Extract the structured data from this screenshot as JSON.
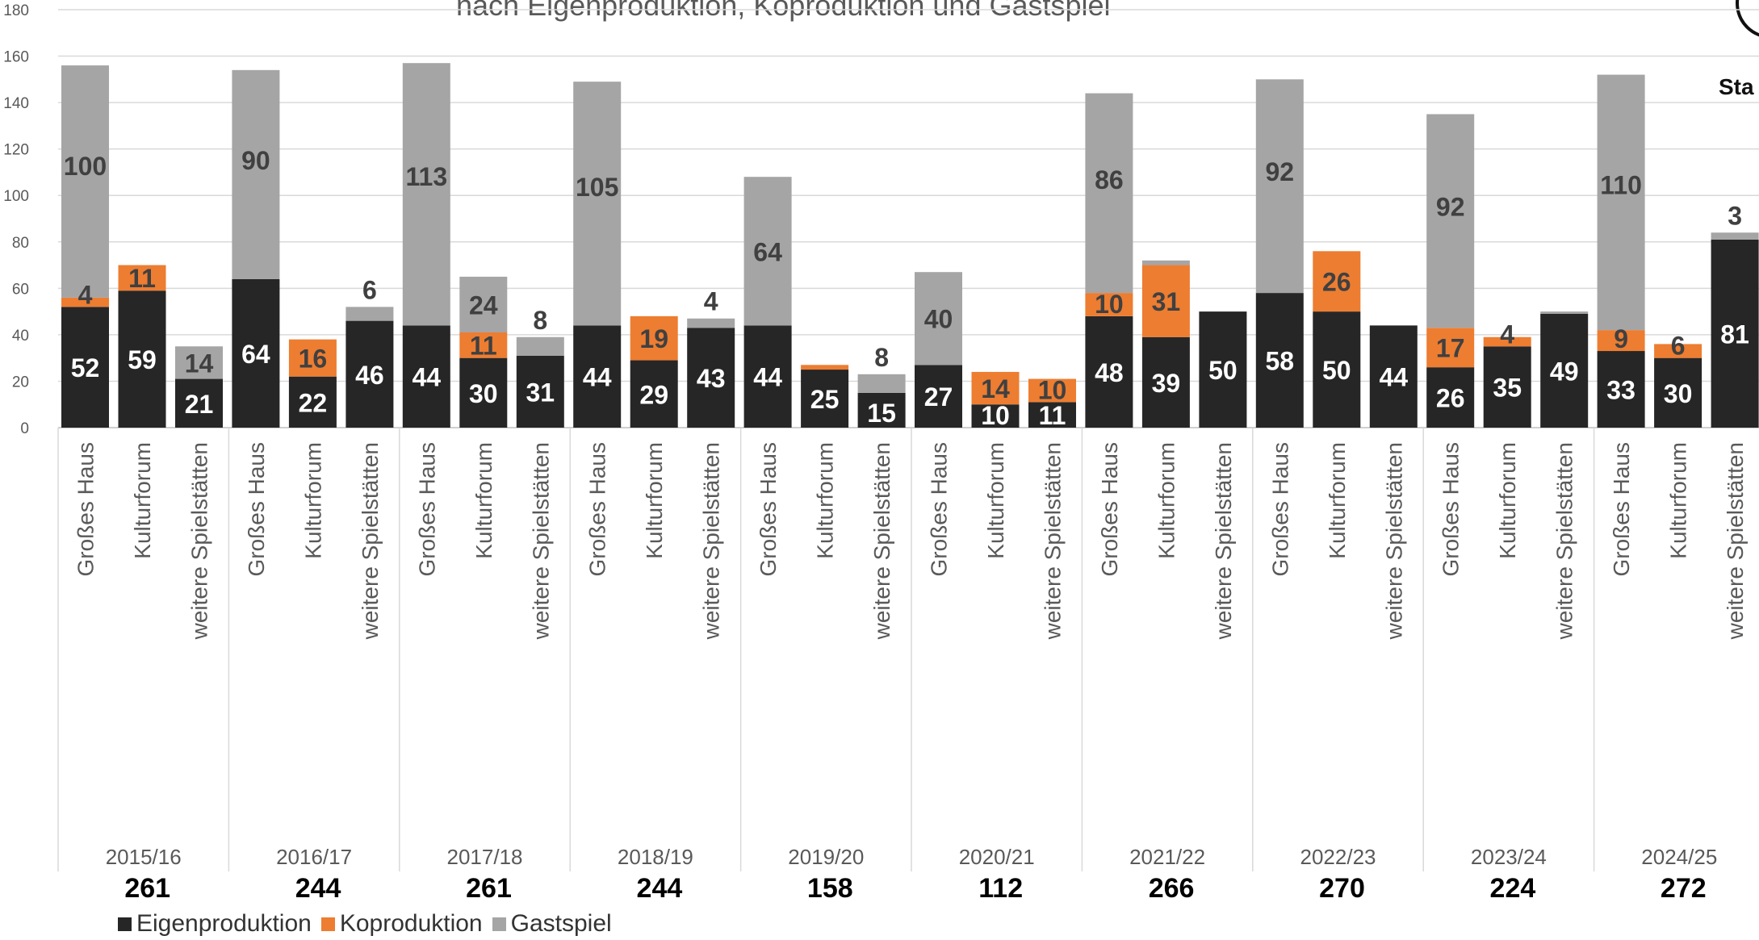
{
  "colors": {
    "eigen": "#262626",
    "ko": "#ED7D31",
    "gast": "#A5A5A5",
    "grid": "#D9D9D9",
    "axis_text": "#595959",
    "total_text": "#000000"
  },
  "title_fragment": "nach Eigenproduktion, Koproduktion und Gastspiel",
  "side_fragment": "Sta",
  "legend": {
    "eigen": "Eigenproduktion",
    "ko": "Koproduktion",
    "gast": "Gastspiel"
  },
  "chart_data": {
    "type": "bar",
    "stacked": true,
    "ylim": [
      0,
      180
    ],
    "yticks": [
      0,
      20,
      40,
      60,
      80,
      100,
      120,
      140,
      160,
      180
    ],
    "grid": true,
    "legend_position": "bottom-left",
    "venues": [
      "Großes Haus",
      "Kulturforum",
      "weitere Spielstätten"
    ],
    "series_names": [
      "Eigenproduktion",
      "Koproduktion",
      "Gastspiel"
    ],
    "seasons": [
      {
        "label": "2015/16",
        "total": "261",
        "bars": [
          {
            "venue": "Großes Haus",
            "eigen": 52,
            "ko": 4,
            "gast": 100
          },
          {
            "venue": "Kulturforum",
            "eigen": 59,
            "ko": 11,
            "gast": 0
          },
          {
            "venue": "weitere Spielstätten",
            "eigen": 21,
            "ko": 0,
            "gast": 14
          }
        ]
      },
      {
        "label": "2016/17",
        "total": "244",
        "bars": [
          {
            "venue": "Großes Haus",
            "eigen": 64,
            "ko": 0,
            "gast": 90
          },
          {
            "venue": "Kulturforum",
            "eigen": 22,
            "ko": 16,
            "gast": 0
          },
          {
            "venue": "weitere Spielstätten",
            "eigen": 46,
            "ko": 0,
            "gast": 6
          }
        ]
      },
      {
        "label": "2017/18",
        "total": "261",
        "bars": [
          {
            "venue": "Großes Haus",
            "eigen": 44,
            "ko": 0,
            "gast": 113
          },
          {
            "venue": "Kulturforum",
            "eigen": 30,
            "ko": 11,
            "gast": 24
          },
          {
            "venue": "weitere Spielstätten",
            "eigen": 31,
            "ko": 0,
            "gast": 8
          }
        ]
      },
      {
        "label": "2018/19",
        "total": "244",
        "bars": [
          {
            "venue": "Großes Haus",
            "eigen": 44,
            "ko": 0,
            "gast": 105
          },
          {
            "venue": "Kulturforum",
            "eigen": 29,
            "ko": 19,
            "gast": 0
          },
          {
            "venue": "weitere Spielstätten",
            "eigen": 43,
            "ko": 0,
            "gast": 4
          }
        ]
      },
      {
        "label": "2019/20",
        "total": "158",
        "bars": [
          {
            "venue": "Großes Haus",
            "eigen": 44,
            "ko": 0,
            "gast": 64
          },
          {
            "venue": "Kulturforum",
            "eigen": 25,
            "ko": 2,
            "gast": 0
          },
          {
            "venue": "weitere Spielstätten",
            "eigen": 15,
            "ko": 0,
            "gast": 8
          }
        ]
      },
      {
        "label": "2020/21",
        "total": "112",
        "bars": [
          {
            "venue": "Großes Haus",
            "eigen": 27,
            "ko": 0,
            "gast": 40
          },
          {
            "venue": "Kulturforum",
            "eigen": 10,
            "ko": 14,
            "gast": 0
          },
          {
            "venue": "weitere Spielstätten",
            "eigen": 11,
            "ko": 10,
            "gast": 0
          }
        ]
      },
      {
        "label": "2021/22",
        "total": "266",
        "bars": [
          {
            "venue": "Großes Haus",
            "eigen": 48,
            "ko": 10,
            "gast": 86
          },
          {
            "venue": "Kulturforum",
            "eigen": 39,
            "ko": 31,
            "gast": 2
          },
          {
            "venue": "weitere Spielstätten",
            "eigen": 50,
            "ko": 0,
            "gast": 0
          }
        ]
      },
      {
        "label": "2022/23",
        "total": "270",
        "bars": [
          {
            "venue": "Großes Haus",
            "eigen": 58,
            "ko": 0,
            "gast": 92
          },
          {
            "venue": "Kulturforum",
            "eigen": 50,
            "ko": 26,
            "gast": 0
          },
          {
            "venue": "weitere Spielstätten",
            "eigen": 44,
            "ko": 0,
            "gast": 0
          }
        ]
      },
      {
        "label": "2023/24",
        "total": "224",
        "bars": [
          {
            "venue": "Großes Haus",
            "eigen": 26,
            "ko": 17,
            "gast": 92
          },
          {
            "venue": "Kulturforum",
            "eigen": 35,
            "ko": 4,
            "gast": 0
          },
          {
            "venue": "weitere Spielstätten",
            "eigen": 49,
            "ko": 0,
            "gast": 1
          }
        ]
      },
      {
        "label": "2024/25",
        "total": "272",
        "bars": [
          {
            "venue": "Großes Haus",
            "eigen": 33,
            "ko": 9,
            "gast": 110
          },
          {
            "venue": "Kulturforum",
            "eigen": 30,
            "ko": 6,
            "gast": 0
          },
          {
            "venue": "weitere Spielstätten",
            "eigen": 81,
            "ko": 0,
            "gast": 3
          }
        ]
      }
    ],
    "data_labels": [
      {
        "season": 0,
        "bar": 0,
        "series": "eigen",
        "text": "52"
      },
      {
        "season": 0,
        "bar": 0,
        "series": "ko",
        "text": "4"
      },
      {
        "season": 0,
        "bar": 0,
        "series": "gast",
        "text": "100"
      },
      {
        "season": 0,
        "bar": 1,
        "series": "eigen",
        "text": "59"
      },
      {
        "season": 0,
        "bar": 1,
        "series": "ko",
        "text": "11"
      },
      {
        "season": 0,
        "bar": 2,
        "series": "eigen",
        "text": "21"
      },
      {
        "season": 0,
        "bar": 2,
        "series": "gast",
        "text": "14"
      },
      {
        "season": 1,
        "bar": 0,
        "series": "eigen",
        "text": "64"
      },
      {
        "season": 1,
        "bar": 0,
        "series": "gast",
        "text": "90"
      },
      {
        "season": 1,
        "bar": 1,
        "series": "eigen",
        "text": "22"
      },
      {
        "season": 1,
        "bar": 1,
        "series": "ko",
        "text": "16"
      },
      {
        "season": 1,
        "bar": 2,
        "series": "eigen",
        "text": "46"
      },
      {
        "season": 1,
        "bar": 2,
        "series": "gast",
        "text": "6"
      },
      {
        "season": 2,
        "bar": 0,
        "series": "eigen",
        "text": "44"
      },
      {
        "season": 2,
        "bar": 0,
        "series": "gast",
        "text": "113"
      },
      {
        "season": 2,
        "bar": 1,
        "series": "eigen",
        "text": "30"
      },
      {
        "season": 2,
        "bar": 1,
        "series": "ko",
        "text": "11"
      },
      {
        "season": 2,
        "bar": 1,
        "series": "gast",
        "text": "24"
      },
      {
        "season": 2,
        "bar": 2,
        "series": "eigen",
        "text": "31"
      },
      {
        "season": 2,
        "bar": 2,
        "series": "gast",
        "text": "8"
      },
      {
        "season": 3,
        "bar": 0,
        "series": "eigen",
        "text": "44"
      },
      {
        "season": 3,
        "bar": 0,
        "series": "gast",
        "text": "105"
      },
      {
        "season": 3,
        "bar": 1,
        "series": "eigen",
        "text": "29"
      },
      {
        "season": 3,
        "bar": 1,
        "series": "ko",
        "text": "19"
      },
      {
        "season": 3,
        "bar": 2,
        "series": "eigen",
        "text": "43"
      },
      {
        "season": 3,
        "bar": 2,
        "series": "gast",
        "text": "4"
      },
      {
        "season": 4,
        "bar": 0,
        "series": "eigen",
        "text": "44"
      },
      {
        "season": 4,
        "bar": 0,
        "series": "gast",
        "text": "64"
      },
      {
        "season": 4,
        "bar": 1,
        "series": "eigen",
        "text": "25"
      },
      {
        "season": 4,
        "bar": 2,
        "series": "eigen",
        "text": "15"
      },
      {
        "season": 4,
        "bar": 2,
        "series": "gast",
        "text": "8"
      },
      {
        "season": 5,
        "bar": 0,
        "series": "eigen",
        "text": "27"
      },
      {
        "season": 5,
        "bar": 0,
        "series": "gast",
        "text": "40"
      },
      {
        "season": 5,
        "bar": 1,
        "series": "eigen",
        "text": "10"
      },
      {
        "season": 5,
        "bar": 1,
        "series": "ko",
        "text": "14"
      },
      {
        "season": 5,
        "bar": 2,
        "series": "eigen",
        "text": "11"
      },
      {
        "season": 5,
        "bar": 2,
        "series": "ko",
        "text": "10"
      },
      {
        "season": 6,
        "bar": 0,
        "series": "eigen",
        "text": "48"
      },
      {
        "season": 6,
        "bar": 0,
        "series": "ko",
        "text": "10"
      },
      {
        "season": 6,
        "bar": 0,
        "series": "gast",
        "text": "86"
      },
      {
        "season": 6,
        "bar": 1,
        "series": "eigen",
        "text": "39"
      },
      {
        "season": 6,
        "bar": 1,
        "series": "ko",
        "text": "31"
      },
      {
        "season": 6,
        "bar": 2,
        "series": "eigen",
        "text": "50"
      },
      {
        "season": 7,
        "bar": 0,
        "series": "eigen",
        "text": "58"
      },
      {
        "season": 7,
        "bar": 0,
        "series": "gast",
        "text": "92"
      },
      {
        "season": 7,
        "bar": 1,
        "series": "eigen",
        "text": "50"
      },
      {
        "season": 7,
        "bar": 1,
        "series": "ko",
        "text": "26"
      },
      {
        "season": 7,
        "bar": 2,
        "series": "eigen",
        "text": "44"
      },
      {
        "season": 8,
        "bar": 0,
        "series": "eigen",
        "text": "26"
      },
      {
        "season": 8,
        "bar": 0,
        "series": "ko",
        "text": "17"
      },
      {
        "season": 8,
        "bar": 0,
        "series": "gast",
        "text": "92"
      },
      {
        "season": 8,
        "bar": 1,
        "series": "eigen",
        "text": "35"
      },
      {
        "season": 8,
        "bar": 1,
        "series": "ko",
        "text": "4"
      },
      {
        "season": 8,
        "bar": 2,
        "series": "eigen",
        "text": "49"
      },
      {
        "season": 9,
        "bar": 0,
        "series": "eigen",
        "text": "33"
      },
      {
        "season": 9,
        "bar": 0,
        "series": "ko",
        "text": "9"
      },
      {
        "season": 9,
        "bar": 0,
        "series": "gast",
        "text": "110"
      },
      {
        "season": 9,
        "bar": 1,
        "series": "eigen",
        "text": "30"
      },
      {
        "season": 9,
        "bar": 1,
        "series": "ko",
        "text": "6"
      },
      {
        "season": 9,
        "bar": 2,
        "series": "eigen",
        "text": "81"
      },
      {
        "season": 9,
        "bar": 2,
        "series": "gast",
        "text": "3"
      }
    ]
  }
}
